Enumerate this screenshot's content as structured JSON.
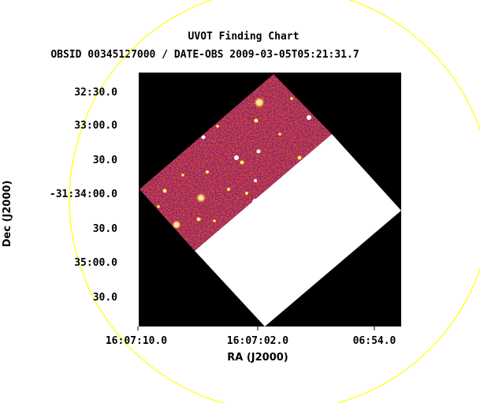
{
  "title": "UVOT Finding Chart",
  "subtitle": "OBSID 00345127000 / DATE-OBS 2009-03-05T05:21:31.7",
  "x_axis_label": "RA (J2000)",
  "y_axis_label": "Dec (J2000)",
  "x_ticks": [
    "16:07:10.0",
    "16:07:02.0",
    "06:54.0"
  ],
  "y_ticks": [
    "32:30.0",
    "33:00.0",
    "30.0",
    "-31:34:00.0",
    "30.0",
    "35:00.0",
    "30.0"
  ],
  "colors": {
    "background": "#000000",
    "exposure_blank": "#ffffff",
    "circle": "#ffff00",
    "image_base": "#9a1a6a",
    "star": "#ffffff"
  }
}
